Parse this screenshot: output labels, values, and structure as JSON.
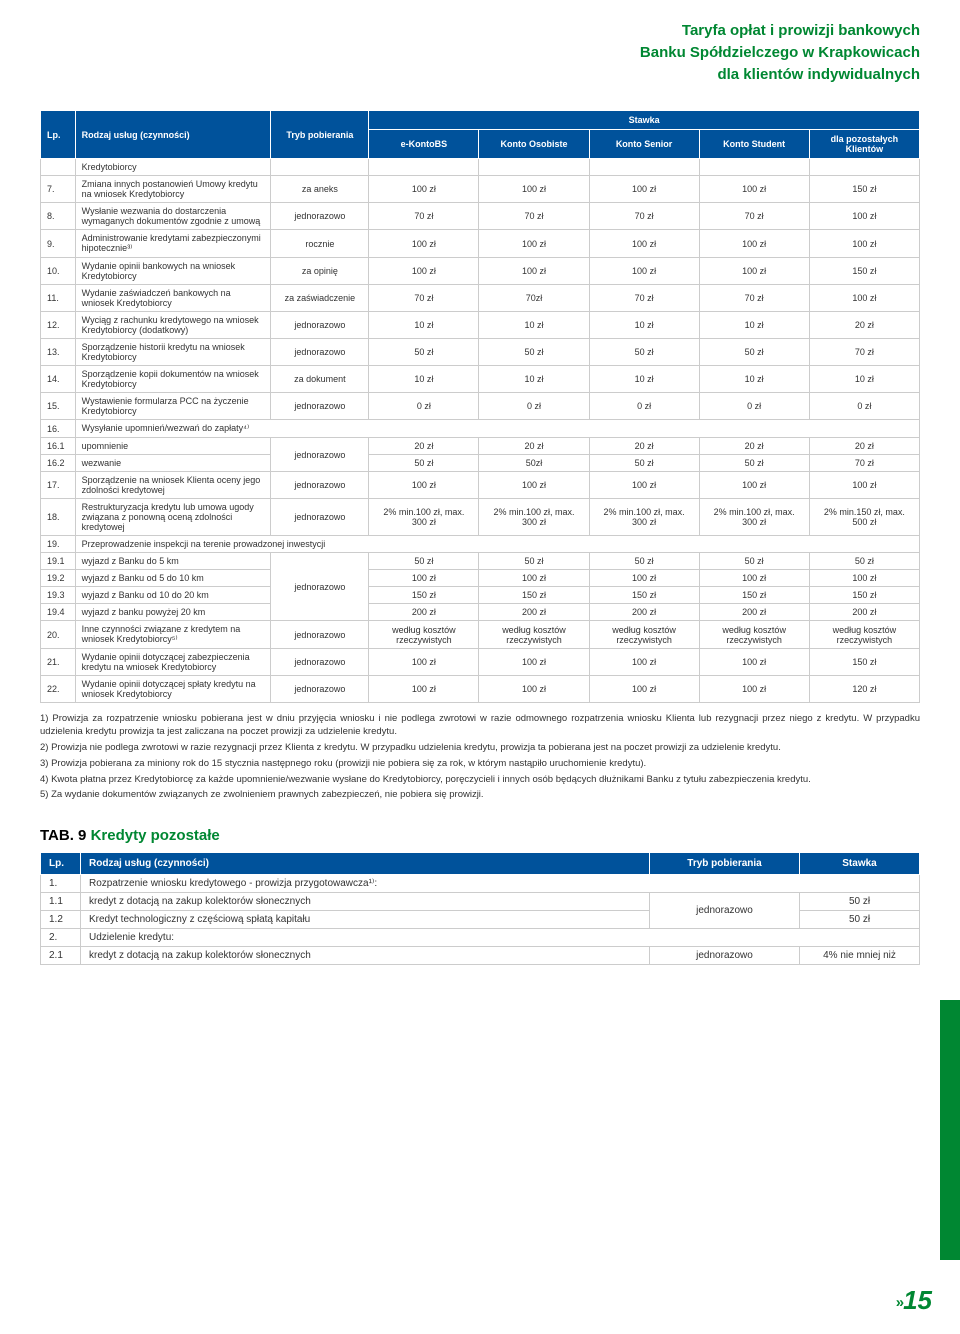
{
  "header": {
    "line1": "Taryfa opłat i prowizji bankowych",
    "line2": "Banku Spółdzielczego w Krapkowicach",
    "line3": "dla klientów indywidualnych"
  },
  "mainTable": {
    "headers": {
      "lp": "Lp.",
      "rodzaj": "Rodzaj usług (czynności)",
      "tryb": "Tryb pobierania",
      "stawka": "Stawka",
      "cols": [
        "e-KontoBS",
        "Konto Osobiste",
        "Konto Senior",
        "Konto Student",
        "dla pozostałych Klientów"
      ]
    },
    "rows": [
      {
        "lp": "",
        "desc": "Kredytobiorcy",
        "tryb": "",
        "v": [
          "",
          "",
          "",
          "",
          ""
        ]
      },
      {
        "lp": "7.",
        "desc": "Zmiana innych postanowień Umowy kredytu na wniosek Kredytobiorcy",
        "tryb": "za aneks",
        "v": [
          "100 zł",
          "100 zł",
          "100 zł",
          "100 zł",
          "150 zł"
        ]
      },
      {
        "lp": "8.",
        "desc": "Wysłanie wezwania do dostarczenia wymaganych dokumentów zgodnie z umową",
        "tryb": "jednorazowo",
        "v": [
          "70 zł",
          "70 zł",
          "70 zł",
          "70 zł",
          "100 zł"
        ]
      },
      {
        "lp": "9.",
        "desc": "Administrowanie kredytami zabezpieczonymi hipotecznie³⁾",
        "tryb": "rocznie",
        "v": [
          "100 zł",
          "100 zł",
          "100 zł",
          "100 zł",
          "100 zł"
        ]
      },
      {
        "lp": "10.",
        "desc": "Wydanie opinii bankowych na wniosek Kredytobiorcy",
        "tryb": "za opinię",
        "v": [
          "100 zł",
          "100 zł",
          "100 zł",
          "100 zł",
          "150 zł"
        ]
      },
      {
        "lp": "11.",
        "desc": "Wydanie zaświadczeń bankowych na wniosek Kredytobiorcy",
        "tryb": "za zaświadczenie",
        "v": [
          "70 zł",
          "70zł",
          "70 zł",
          "70 zł",
          "100 zł"
        ]
      },
      {
        "lp": "12.",
        "desc": "Wyciąg z rachunku kredytowego na wniosek Kredytobiorcy (dodatkowy)",
        "tryb": "jednorazowo",
        "v": [
          "10 zł",
          "10 zł",
          "10 zł",
          "10 zł",
          "20 zł"
        ]
      },
      {
        "lp": "13.",
        "desc": "Sporządzenie historii kredytu na wniosek Kredytobiorcy",
        "tryb": "jednorazowo",
        "v": [
          "50 zł",
          "50 zł",
          "50 zł",
          "50 zł",
          "70 zł"
        ]
      },
      {
        "lp": "14.",
        "desc": "Sporządzenie kopii dokumentów na wniosek Kredytobiorcy",
        "tryb": "za dokument",
        "v": [
          "10 zł",
          "10 zł",
          "10 zł",
          "10 zł",
          "10 zł"
        ]
      },
      {
        "lp": "15.",
        "desc": "Wystawienie formularza PCC na życzenie Kredytobiorcy",
        "tryb": "jednorazowo",
        "v": [
          "0 zł",
          "0 zł",
          "0 zł",
          "0 zł",
          "0 zł"
        ]
      },
      {
        "lp": "16.",
        "desc": "Wysyłanie upomnień/wezwań do zapłaty⁴⁾",
        "span": true
      },
      {
        "lp": "16.1",
        "desc": "upomnienie",
        "tryb": "jednorazowo",
        "trybRowspan": 2,
        "v": [
          "20 zł",
          "20 zł",
          "20 zł",
          "20 zł",
          "20 zł"
        ]
      },
      {
        "lp": "16.2",
        "desc": "wezwanie",
        "noTryb": true,
        "v": [
          "50 zł",
          "50zł",
          "50 zł",
          "50 zł",
          "70 zł"
        ]
      },
      {
        "lp": "17.",
        "desc": "Sporządzenie na wniosek Klienta  oceny jego zdolności kredytowej",
        "tryb": "jednorazowo",
        "v": [
          "100 zł",
          "100 zł",
          "100 zł",
          "100 zł",
          "100 zł"
        ]
      },
      {
        "lp": "18.",
        "desc": "Restrukturyzacja kredytu lub umowa ugody związana z ponowną oceną zdolności kredytowej",
        "tryb": "jednorazowo",
        "v": [
          "2% min.100 zł, max. 300 zł",
          "2% min.100 zł, max. 300 zł",
          "2% min.100 zł, max. 300 zł",
          "2% min.100 zł, max. 300 zł",
          "2% min.150 zł, max. 500 zł"
        ]
      },
      {
        "lp": "19.",
        "desc": "Przeprowadzenie inspekcji na terenie prowadzonej inwestycji",
        "span": true
      },
      {
        "lp": "19.1",
        "desc": "wyjazd z Banku do 5 km",
        "tryb": "jednorazowo",
        "trybRowspan": 4,
        "v": [
          "50 zł",
          "50 zł",
          "50 zł",
          "50 zł",
          "50 zł"
        ]
      },
      {
        "lp": "19.2",
        "desc": "wyjazd z Banku od 5 do 10 km",
        "noTryb": true,
        "v": [
          "100 zł",
          "100 zł",
          "100 zł",
          "100 zł",
          "100 zł"
        ]
      },
      {
        "lp": "19.3",
        "desc": "wyjazd z Banku od 10 do 20 km",
        "noTryb": true,
        "v": [
          "150 zł",
          "150 zł",
          "150 zł",
          "150 zł",
          "150 zł"
        ]
      },
      {
        "lp": "19.4",
        "desc": "wyjazd z banku powyżej 20 km",
        "noTryb": true,
        "v": [
          "200 zł",
          "200 zł",
          "200 zł",
          "200 zł",
          "200 zł"
        ]
      },
      {
        "lp": "20.",
        "desc": "Inne czynności związane z kredytem na wniosek Kredytobiorcy⁵⁾",
        "tryb": "jednorazowo",
        "v": [
          "według kosztów rzeczywistych",
          "według kosztów rzeczywistych",
          "według kosztów rzeczywistych",
          "według kosztów rzeczywistych",
          "według kosztów rzeczywistych"
        ]
      },
      {
        "lp": "21.",
        "desc": "Wydanie opinii dotyczącej zabezpieczenia kredytu na wniosek Kredytobiorcy",
        "tryb": "jednorazowo",
        "v": [
          "100 zł",
          "100 zł",
          "100 zł",
          "100 zł",
          "150 zł"
        ]
      },
      {
        "lp": "22.",
        "desc": "Wydanie opinii dotyczącej spłaty kredytu na wniosek Kredytobiorcy",
        "tryb": "jednorazowo",
        "v": [
          "100 zł",
          "100 zł",
          "100 zł",
          "100 zł",
          "120 zł"
        ]
      }
    ]
  },
  "notes": [
    "1)  Prowizja za rozpatrzenie wniosku pobierana jest w dniu przyjęcia wniosku i nie podlega zwrotowi w razie odmownego rozpatrzenia wniosku Klienta lub rezygnacji przez niego z kredytu. W przypadku udzielenia kredytu prowizja ta jest zaliczana na poczet prowizji za udzielenie kredytu.",
    "2)  Prowizja nie podlega zwrotowi w razie rezygnacji przez Klienta z kredytu. W przypadku udzielenia kredytu, prowizja ta pobierana jest na poczet prowizji za udzielenie kredytu.",
    "3)  Prowizja pobierana za miniony rok do 15 stycznia następnego roku (prowizji nie pobiera się za rok, w którym nastąpiło uruchomienie kredytu).",
    "4)  Kwota płatna przez Kredytobiorcę za każde upomnienie/wezwanie wysłane do Kredytobiorcy, poręczycieli i innych osób będących dłużnikami Banku z tytułu zabezpieczenia kredytu.",
    "5)  Za wydanie dokumentów związanych ze zwolnieniem prawnych zabezpieczeń, nie pobiera się prowizji."
  ],
  "tab9": {
    "title": "Kredyty pozostałe",
    "prefix": "TAB. 9",
    "headers": {
      "lp": "Lp.",
      "rodzaj": "Rodzaj usług (czynności)",
      "tryb": "Tryb pobierania",
      "stawka": "Stawka"
    },
    "rows": [
      {
        "lp": "1.",
        "desc": "Rozpatrzenie wniosku kredytowego - prowizja przygotowawcza¹⁾:",
        "span": true
      },
      {
        "lp": "1.1",
        "desc": "kredyt z dotacją na zakup kolektorów słonecznych",
        "tryb": "jednorazowo",
        "trybRowspan": 2,
        "stawka": "50 zł"
      },
      {
        "lp": "1.2",
        "desc": "Kredyt technologiczny z częściową spłatą kapitału",
        "noTryb": true,
        "stawka": "50 zł"
      },
      {
        "lp": "2.",
        "desc": "Udzielenie kredytu:",
        "span": true
      },
      {
        "lp": "2.1",
        "desc": "kredyt z dotacją na zakup kolektorów słonecznych",
        "tryb": "jednorazowo",
        "stawka": "4% nie mniej niż"
      }
    ]
  },
  "pageNumber": "15"
}
